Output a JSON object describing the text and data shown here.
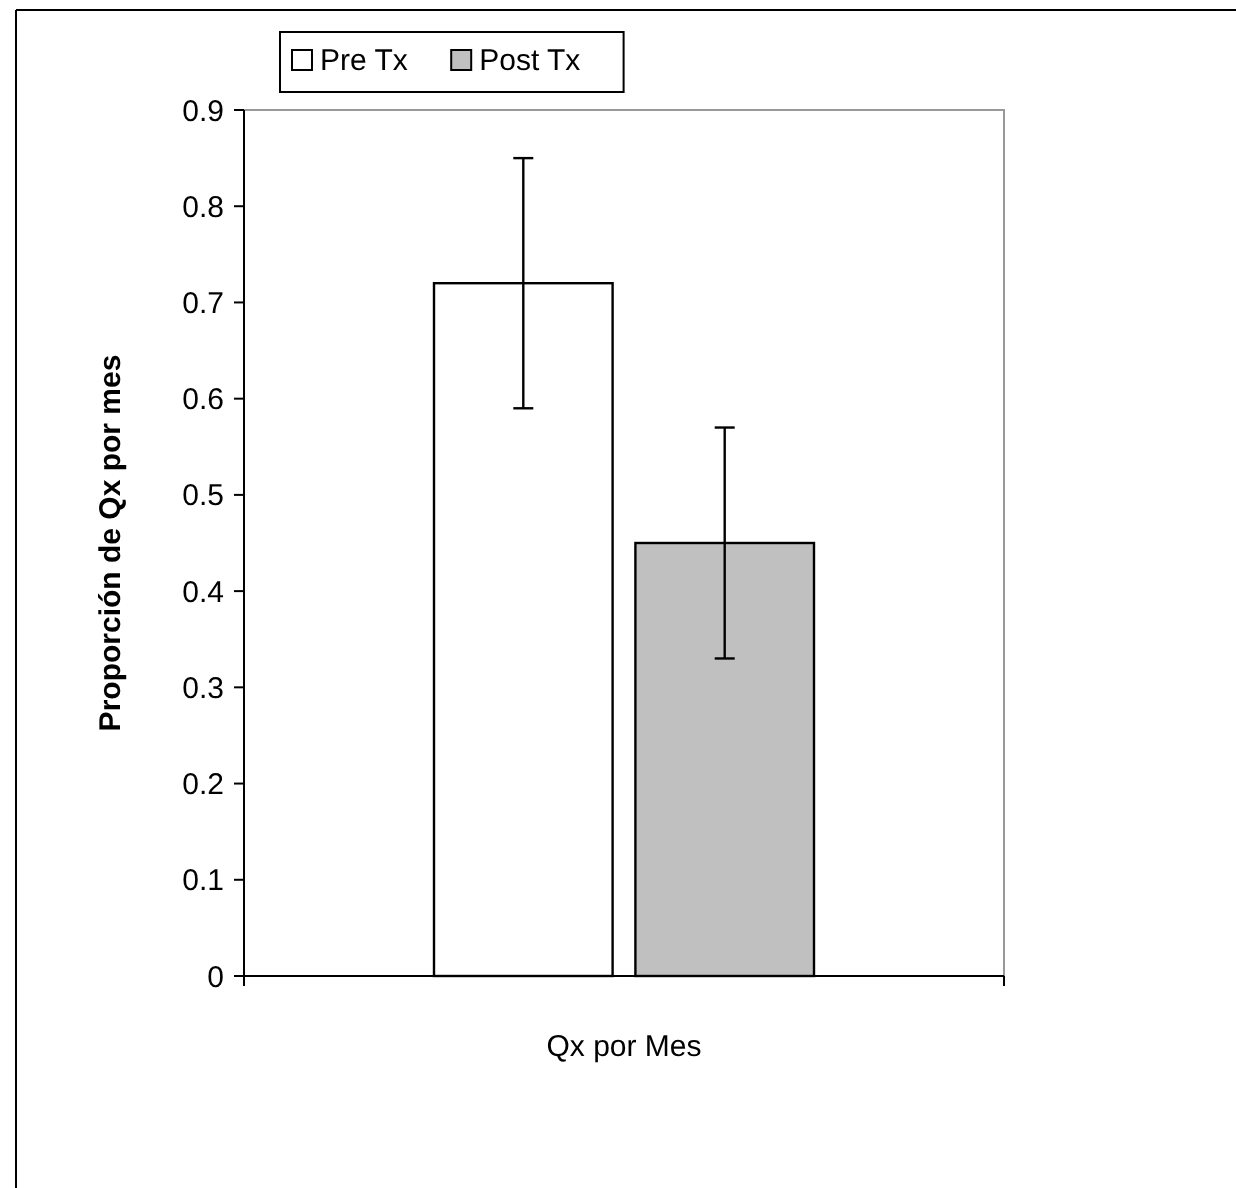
{
  "chart_data": {
    "type": "bar",
    "categories": [
      null
    ],
    "xlabel": "Qx por Mes",
    "ylabel": "Proporción de Qx por mes",
    "series": [
      {
        "name": "Pre Tx",
        "color": "#ffffff",
        "values": [
          0.72
        ],
        "errors": [
          0.13
        ]
      },
      {
        "name": "Post Tx",
        "color": "#c0c0c0",
        "values": [
          0.45
        ],
        "errors": [
          0.12
        ]
      }
    ],
    "ylim": [
      0,
      0.9
    ],
    "yticks": [
      {
        "value": 0,
        "label": "0"
      },
      {
        "value": 0.1,
        "label": "0.1"
      },
      {
        "value": 0.2,
        "label": "0.2"
      },
      {
        "value": 0.3,
        "label": "0.3"
      },
      {
        "value": 0.4,
        "label": "0.4"
      },
      {
        "value": 0.5,
        "label": "0.5"
      },
      {
        "value": 0.6,
        "label": "0.6"
      },
      {
        "value": 0.7,
        "label": "0.7"
      },
      {
        "value": 0.8,
        "label": "0.8"
      },
      {
        "value": 0.9,
        "label": "0.9"
      }
    ],
    "grid": false,
    "legend": "top"
  }
}
